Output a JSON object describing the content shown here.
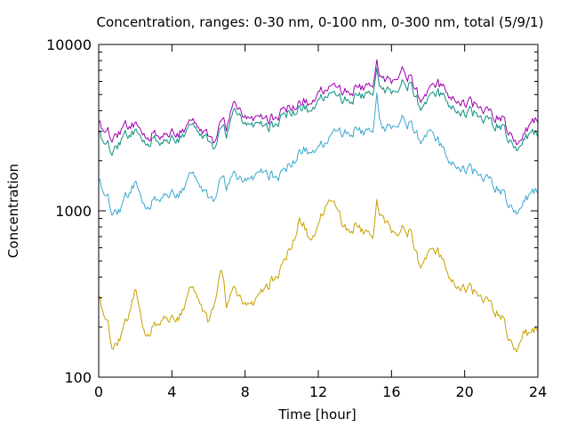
{
  "chart_data": {
    "type": "line",
    "title": "Concentration, ranges: 0-30 nm, 0-100 nm, 0-300 nm, total (5/9/1)",
    "xlabel": "Time [hour]",
    "ylabel": "Concentration",
    "xlim": [
      0,
      24
    ],
    "ylim": [
      100,
      10000
    ],
    "yscale": "log",
    "grid": false,
    "legend": "none",
    "x_ticks": [
      0,
      4,
      8,
      12,
      16,
      20,
      24
    ],
    "x_tick_labels": [
      "0",
      "4",
      "8",
      "12",
      "16",
      "20",
      "24"
    ],
    "y_ticks": [
      100,
      1000,
      10000
    ],
    "y_tick_labels": [
      "100",
      "1000",
      "10000"
    ],
    "x": [
      0,
      0.5,
      0.8,
      1.2,
      1.5,
      2.0,
      2.5,
      3.0,
      3.5,
      4.0,
      4.5,
      5.0,
      5.5,
      6.0,
      6.3,
      6.7,
      7.0,
      7.3,
      7.6,
      8.0,
      8.5,
      9.0,
      9.5,
      10.0,
      10.5,
      11.0,
      11.3,
      11.6,
      12.0,
      12.5,
      13.0,
      13.5,
      14.0,
      14.5,
      15.0,
      15.2,
      15.5,
      16.0,
      16.5,
      17.0,
      17.5,
      18.0,
      18.5,
      19.0,
      19.5,
      20.0,
      20.5,
      21.0,
      21.5,
      22.0,
      22.5,
      22.8,
      23.2,
      23.6,
      24.0
    ],
    "series": [
      {
        "color": "#c8a000",
        "values": [
          300,
          210,
          145,
          180,
          210,
          330,
          180,
          200,
          240,
          220,
          240,
          340,
          300,
          220,
          260,
          420,
          270,
          370,
          300,
          260,
          280,
          330,
          390,
          450,
          620,
          900,
          800,
          650,
          780,
          1250,
          1000,
          800,
          820,
          760,
          700,
          1100,
          900,
          760,
          800,
          750,
          480,
          520,
          560,
          460,
          360,
          350,
          320,
          300,
          260,
          230,
          170,
          140,
          190,
          180,
          200
        ]
      },
      {
        "color": "#3aa8d0",
        "values": [
          1500,
          1200,
          950,
          1050,
          1200,
          1450,
          1050,
          1150,
          1300,
          1250,
          1300,
          1650,
          1500,
          1250,
          1100,
          1500,
          1400,
          1800,
          1500,
          1450,
          1600,
          1700,
          1650,
          1650,
          1950,
          2300,
          2400,
          2200,
          2300,
          2850,
          2900,
          3050,
          3100,
          3000,
          3050,
          4800,
          3000,
          3200,
          3700,
          3300,
          2700,
          2800,
          2600,
          2200,
          1900,
          1800,
          1700,
          1600,
          1450,
          1300,
          1100,
          950,
          1150,
          1250,
          1350
        ]
      },
      {
        "color": "#0a9080",
        "values": [
          2900,
          2500,
          2250,
          2700,
          2800,
          2950,
          2550,
          2700,
          2750,
          2650,
          2800,
          3200,
          3050,
          2750,
          2250,
          3000,
          2900,
          4200,
          3700,
          3150,
          3300,
          3200,
          3300,
          3600,
          4000,
          4200,
          4300,
          3900,
          4400,
          5400,
          4700,
          4800,
          4900,
          5000,
          5100,
          6800,
          5200,
          5200,
          6000,
          5700,
          4300,
          4400,
          5000,
          4800,
          4100,
          3900,
          3800,
          3600,
          3300,
          3200,
          2700,
          2300,
          2700,
          2900,
          2950
        ]
      },
      {
        "color": "#a000b0",
        "values": [
          3300,
          3000,
          2700,
          3100,
          3200,
          3250,
          2800,
          2900,
          3000,
          2900,
          3000,
          3400,
          3250,
          2950,
          2450,
          3300,
          3200,
          4700,
          4000,
          3450,
          3600,
          3550,
          3650,
          3900,
          4300,
          4500,
          4700,
          4300,
          4900,
          5900,
          5300,
          5400,
          5500,
          5600,
          5700,
          7600,
          6100,
          6000,
          7300,
          6300,
          4800,
          4900,
          5700,
          5400,
          4700,
          4500,
          4300,
          4100,
          3700,
          3600,
          3000,
          2500,
          2900,
          3300,
          3600
        ]
      }
    ]
  }
}
